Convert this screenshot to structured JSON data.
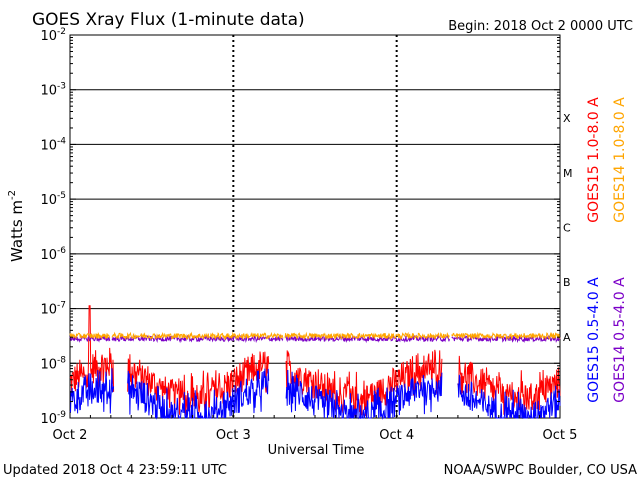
{
  "chart_data": {
    "type": "line",
    "title": "GOES Xray Flux (1-minute data)",
    "begin_label": "Begin:  2018 Oct 2 0000 UTC",
    "ylabel_text": "Watts m",
    "ylabel_sup": "-2",
    "xlabel": "Universal Time",
    "updated": "Updated 2018 Oct  4 23:59:11 UTC",
    "source": "NOAA/SWPC Boulder, CO USA",
    "y_scale": "log",
    "ylim": [
      1e-09,
      0.01
    ],
    "xlim": [
      0,
      3
    ],
    "x_ticks": [
      {
        "value": 0,
        "label": "Oct 2"
      },
      {
        "value": 1,
        "label": "Oct 3"
      },
      {
        "value": 2,
        "label": "Oct 4"
      },
      {
        "value": 3,
        "label": "Oct 5"
      }
    ],
    "y_ticks": [
      {
        "exp": -9,
        "label": "10",
        "sup": "-9"
      },
      {
        "exp": -8,
        "label": "10",
        "sup": "-8"
      },
      {
        "exp": -7,
        "label": "10",
        "sup": "-7"
      },
      {
        "exp": -6,
        "label": "10",
        "sup": "-6"
      },
      {
        "exp": -5,
        "label": "10",
        "sup": "-5"
      },
      {
        "exp": -4,
        "label": "10",
        "sup": "-4"
      },
      {
        "exp": -3,
        "label": "10",
        "sup": "-3"
      },
      {
        "exp": -2,
        "label": "10",
        "sup": "-2"
      }
    ],
    "flare_classes": [
      {
        "label": "A",
        "exp": -7.5
      },
      {
        "label": "B",
        "exp": -6.5
      },
      {
        "label": "C",
        "exp": -5.5
      },
      {
        "label": "M",
        "exp": -4.5
      },
      {
        "label": "X",
        "exp": -3.5
      }
    ],
    "series": [
      {
        "name": "GOES15 0.5-4.0 A",
        "color": "#0000ff",
        "base_exp": -8.7,
        "noise": 0.3,
        "gaps": [
          [
            0.27,
            0.35
          ],
          [
            1.22,
            1.32
          ],
          [
            2.28,
            2.37
          ]
        ],
        "spikes": []
      },
      {
        "name": "GOES14 0.5-4.0 A",
        "color": "#7b00c8",
        "base_exp": -7.55,
        "noise": 0.05,
        "gaps": [
          [
            0.245,
            0.255
          ],
          [
            1.305,
            1.315
          ],
          [
            2.325,
            2.335
          ]
        ],
        "spikes": []
      },
      {
        "name": "GOES15 1.0-8.0 A",
        "color": "#ff0000",
        "base_exp": -8.35,
        "noise": 0.3,
        "gaps": [
          [
            0.27,
            0.35
          ],
          [
            1.22,
            1.32
          ],
          [
            2.28,
            2.37
          ]
        ],
        "spikes": [
          [
            0.12,
            -6.95
          ]
        ]
      },
      {
        "name": "GOES14 1.0-8.0 A",
        "color": "#ffa500",
        "base_exp": -7.5,
        "noise": 0.05,
        "gaps": [
          [
            0.245,
            0.255
          ],
          [
            1.305,
            1.315
          ],
          [
            2.325,
            2.335
          ]
        ],
        "spikes": []
      }
    ],
    "grid": "horizontal at decades, dashed vertical day separators",
    "legend_placement": "right, vertical text"
  }
}
